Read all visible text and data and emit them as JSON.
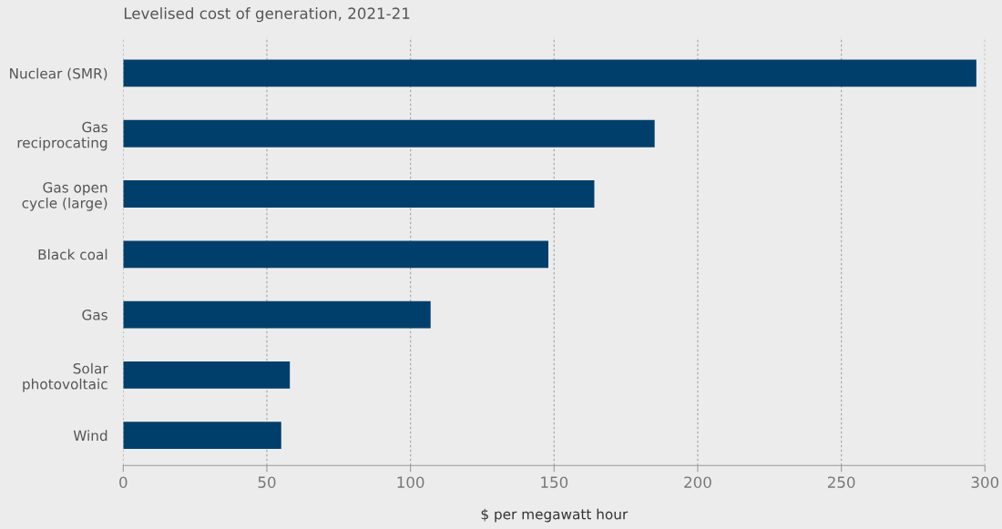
{
  "chart_data": {
    "type": "bar",
    "orientation": "horizontal",
    "title": "Levelised cost of generation, 2021-21",
    "xlabel": "$ per megawatt hour",
    "categories": [
      "Nuclear (SMR)",
      "Gas\nreciprocating",
      "Gas open\ncycle (large)",
      "Black coal",
      "Gas",
      "Solar\nphotovoltaic",
      "Wind"
    ],
    "values": [
      297,
      185,
      164,
      148,
      107,
      58,
      55
    ],
    "color": "#003f6b",
    "xlim": [
      0,
      300
    ],
    "xticks": [
      0,
      50,
      100,
      150,
      200,
      250,
      300
    ],
    "grid": "x"
  }
}
